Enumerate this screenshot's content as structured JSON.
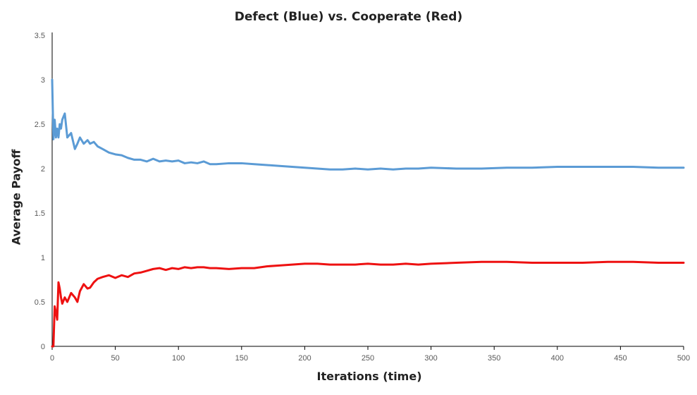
{
  "chart_data": {
    "type": "line",
    "title": "Defect (Blue)  vs. Cooperate (Red)",
    "xlabel": "Iterations (time)",
    "ylabel": "Average Payoff",
    "xlim": [
      0,
      500
    ],
    "ylim": [
      0,
      3.5
    ],
    "x_ticks": [
      "0",
      "50",
      "100",
      "150",
      "200",
      "250",
      "300",
      "350",
      "400",
      "450",
      "500"
    ],
    "y_ticks": [
      "0",
      "0.5",
      "1",
      "1.5",
      "2",
      "2.5",
      "3",
      "3.5"
    ],
    "grid": false,
    "legend": "none",
    "series": [
      {
        "color": "#5b9bd5",
        "x": [
          0,
          1,
          2,
          3,
          4,
          5,
          6,
          7,
          8,
          10,
          12,
          15,
          18,
          20,
          22,
          25,
          28,
          30,
          33,
          36,
          40,
          45,
          50,
          55,
          60,
          65,
          70,
          75,
          80,
          85,
          90,
          95,
          100,
          105,
          110,
          115,
          120,
          125,
          130,
          140,
          150,
          160,
          170,
          180,
          190,
          200,
          210,
          220,
          230,
          240,
          250,
          260,
          270,
          280,
          290,
          300,
          320,
          340,
          360,
          380,
          400,
          420,
          440,
          460,
          480,
          500
        ],
        "y": [
          3.0,
          2.33,
          2.55,
          2.35,
          2.45,
          2.35,
          2.5,
          2.45,
          2.55,
          2.62,
          2.35,
          2.4,
          2.22,
          2.28,
          2.35,
          2.28,
          2.32,
          2.28,
          2.3,
          2.25,
          2.22,
          2.18,
          2.16,
          2.15,
          2.12,
          2.1,
          2.1,
          2.08,
          2.11,
          2.08,
          2.09,
          2.08,
          2.09,
          2.06,
          2.07,
          2.06,
          2.08,
          2.05,
          2.05,
          2.06,
          2.06,
          2.05,
          2.04,
          2.03,
          2.02,
          2.01,
          2.0,
          1.99,
          1.99,
          2.0,
          1.99,
          2.0,
          1.99,
          2.0,
          2.0,
          2.01,
          2.0,
          2.0,
          2.01,
          2.01,
          2.02,
          2.02,
          2.02,
          2.02,
          2.01,
          2.01
        ]
      },
      {
        "color": "#ee1111",
        "x": [
          0,
          1,
          2,
          3,
          4,
          5,
          6,
          7,
          8,
          10,
          12,
          15,
          18,
          20,
          22,
          25,
          28,
          30,
          33,
          36,
          40,
          45,
          50,
          55,
          60,
          65,
          70,
          75,
          80,
          85,
          90,
          95,
          100,
          105,
          110,
          115,
          120,
          125,
          130,
          140,
          150,
          160,
          170,
          180,
          190,
          200,
          210,
          220,
          230,
          240,
          250,
          260,
          270,
          280,
          290,
          300,
          320,
          340,
          360,
          380,
          400,
          420,
          440,
          460,
          480,
          500
        ],
        "y": [
          0.0,
          0.0,
          0.45,
          0.38,
          0.3,
          0.72,
          0.65,
          0.55,
          0.48,
          0.55,
          0.5,
          0.6,
          0.55,
          0.5,
          0.62,
          0.7,
          0.65,
          0.66,
          0.72,
          0.76,
          0.78,
          0.8,
          0.77,
          0.8,
          0.78,
          0.82,
          0.83,
          0.85,
          0.87,
          0.88,
          0.86,
          0.88,
          0.87,
          0.89,
          0.88,
          0.89,
          0.89,
          0.88,
          0.88,
          0.87,
          0.88,
          0.88,
          0.9,
          0.91,
          0.92,
          0.93,
          0.93,
          0.92,
          0.92,
          0.92,
          0.93,
          0.92,
          0.92,
          0.93,
          0.92,
          0.93,
          0.94,
          0.95,
          0.95,
          0.94,
          0.94,
          0.94,
          0.95,
          0.95,
          0.94,
          0.94
        ]
      }
    ]
  }
}
